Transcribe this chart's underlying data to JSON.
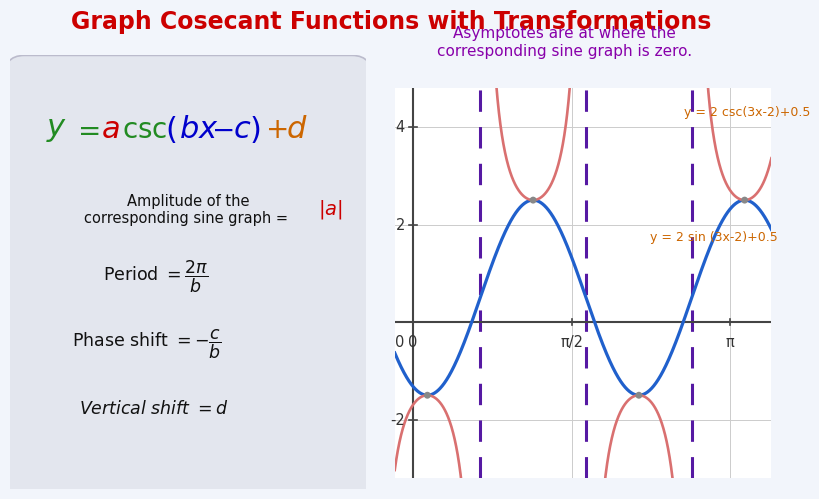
{
  "title": "Graph Cosecant Functions with Transformations",
  "title_color": "#cc0000",
  "title_fontsize": 17,
  "figure_bg": "#f2f5fb",
  "annotation_text": "Asymptotes are at where the\ncorresponding sine graph is zero.",
  "annotation_color": "#8800aa",
  "annotation_fontsize": 11,
  "sine_color": "#2060cc",
  "csc_color": "#d97070",
  "asymptote_color": "#440099",
  "xlabel_ticks": [
    "0",
    "π/2",
    "π"
  ],
  "xlabel_tick_vals": [
    0.0,
    1.5707963,
    3.1415927
  ],
  "ylim": [
    -3.2,
    4.8
  ],
  "xlim": [
    -0.18,
    3.55
  ],
  "ylabel_ticks": [
    -2,
    0,
    2,
    4
  ],
  "sine_label": "y = 2 sin (3x-2)+0.5",
  "csc_label": "y = 2 csc(3x-2)+0.5",
  "label_color": "#cc6600",
  "formula_box_color": "#e3e6ee",
  "grid_color": "#cccccc",
  "dot_color": "#888888",
  "dot_size": 25
}
